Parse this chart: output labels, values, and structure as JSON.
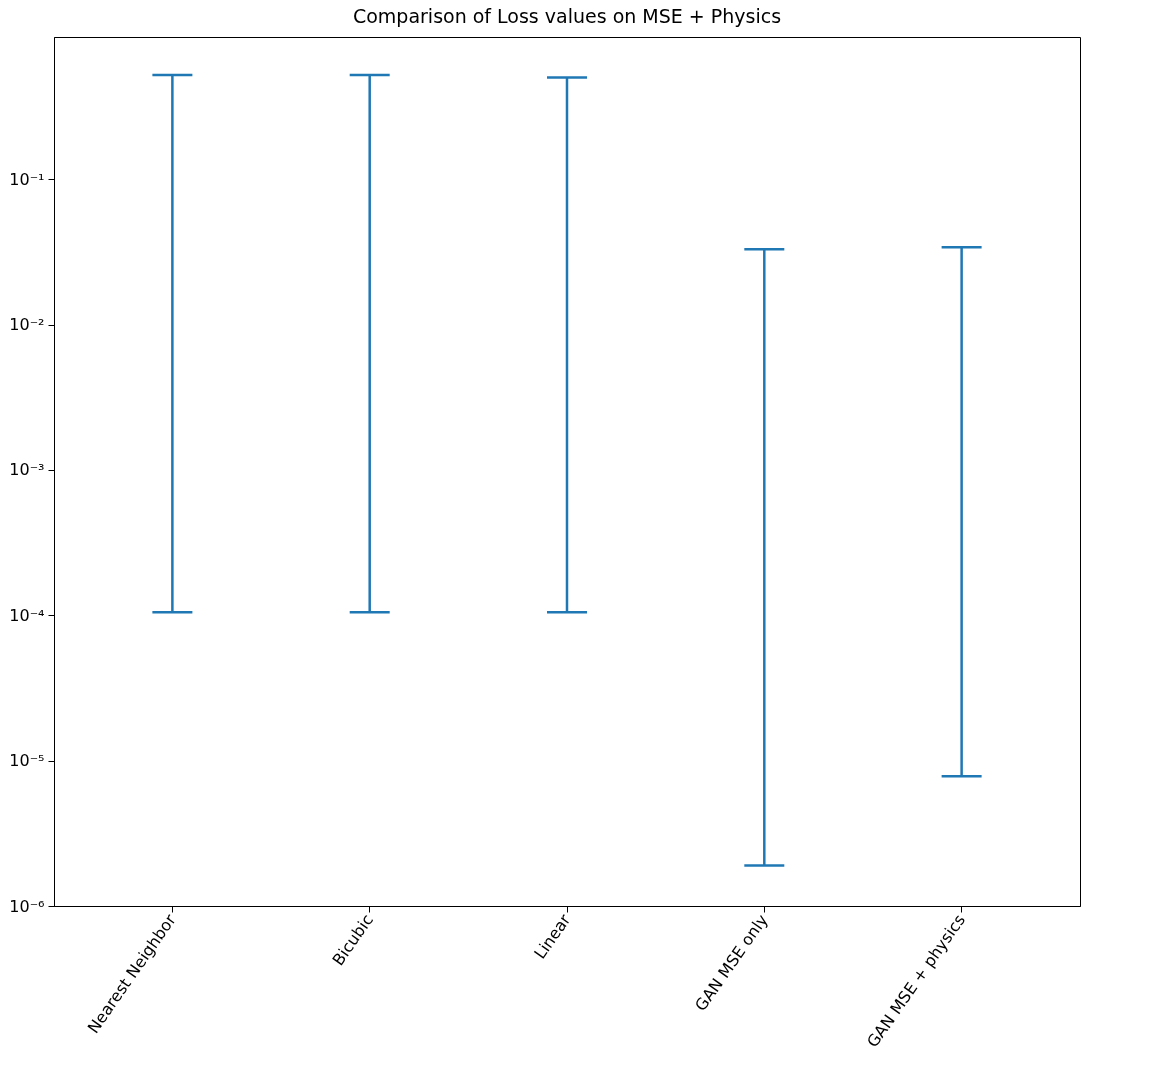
{
  "chart_data": {
    "type": "bar",
    "title": "Comparison of Loss values on MSE + Physics",
    "categories": [
      "Nearest Neighbor",
      "Bicubic",
      "Linear",
      "GAN MSE only",
      "GAN MSE + physics"
    ],
    "color": "#1f77b4",
    "base": [
      0.000105,
      0.000105,
      0.000105,
      1.9e-06,
      7.8e-06
    ],
    "values": [
      0.519895,
      0.519895,
      0.499895,
      0.0329981,
      0.0339922
    ],
    "log": true,
    "ylim": [
      1e-06,
      0.95
    ],
    "yticks": [
      {
        "value": 1e-06,
        "label": "10⁻⁶"
      },
      {
        "value": 1e-05,
        "label": "10⁻⁵"
      },
      {
        "value": 0.0001,
        "label": "10⁻⁴"
      },
      {
        "value": 0.001,
        "label": "10⁻³"
      },
      {
        "value": 0.01,
        "label": "10⁻²"
      },
      {
        "value": 0.1,
        "label": "10⁻¹"
      }
    ],
    "grid": false
  }
}
